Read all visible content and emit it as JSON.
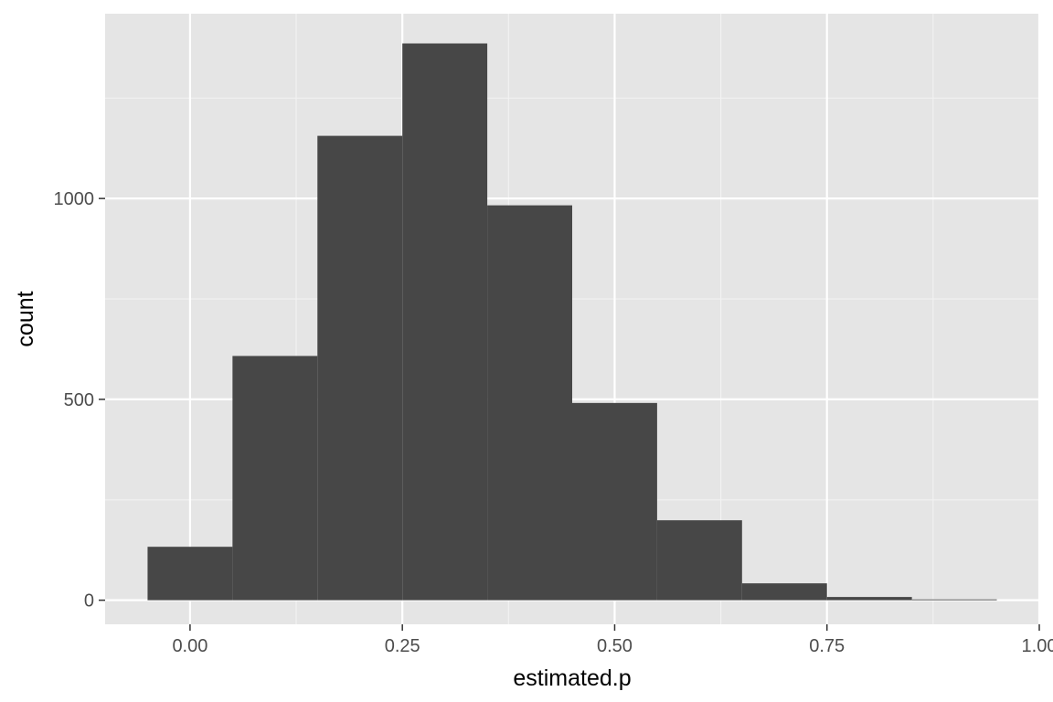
{
  "chart_data": {
    "type": "histogram",
    "title": "",
    "xlabel": "estimated.p",
    "ylabel": "count",
    "xlim": [
      -0.1,
      1.0
    ],
    "ylim": [
      -60,
      1460
    ],
    "bin_width": 0.1,
    "bins": [
      {
        "x_start": -0.05,
        "x_end": 0.05,
        "count": 133
      },
      {
        "x_start": 0.05,
        "x_end": 0.15,
        "count": 608
      },
      {
        "x_start": 0.15,
        "x_end": 0.25,
        "count": 1156
      },
      {
        "x_start": 0.25,
        "x_end": 0.35,
        "count": 1386
      },
      {
        "x_start": 0.35,
        "x_end": 0.45,
        "count": 983
      },
      {
        "x_start": 0.45,
        "x_end": 0.55,
        "count": 491
      },
      {
        "x_start": 0.55,
        "x_end": 0.65,
        "count": 199
      },
      {
        "x_start": 0.65,
        "x_end": 0.75,
        "count": 42
      },
      {
        "x_start": 0.75,
        "x_end": 0.85,
        "count": 8
      },
      {
        "x_start": 0.85,
        "x_end": 0.95,
        "count": 2
      }
    ],
    "x_ticks": [
      {
        "value": 0.0,
        "label": "0.00"
      },
      {
        "value": 0.25,
        "label": "0.25"
      },
      {
        "value": 0.5,
        "label": "0.50"
      },
      {
        "value": 0.75,
        "label": "0.75"
      },
      {
        "value": 1.0,
        "label": "1.00"
      }
    ],
    "x_minor_ticks": [
      0.125,
      0.375,
      0.625,
      0.875
    ],
    "y_ticks": [
      {
        "value": 0,
        "label": "0"
      },
      {
        "value": 500,
        "label": "500"
      },
      {
        "value": 1000,
        "label": "1000"
      }
    ],
    "y_minor_ticks": [
      250,
      750,
      1250
    ],
    "grid": true,
    "legend": "none",
    "colors": {
      "bar": "#474747",
      "panel_background": "#e5e5e5",
      "grid_major": "#ffffff",
      "grid_minor": "#f2f2f2",
      "tick_mark": "#333333"
    }
  }
}
